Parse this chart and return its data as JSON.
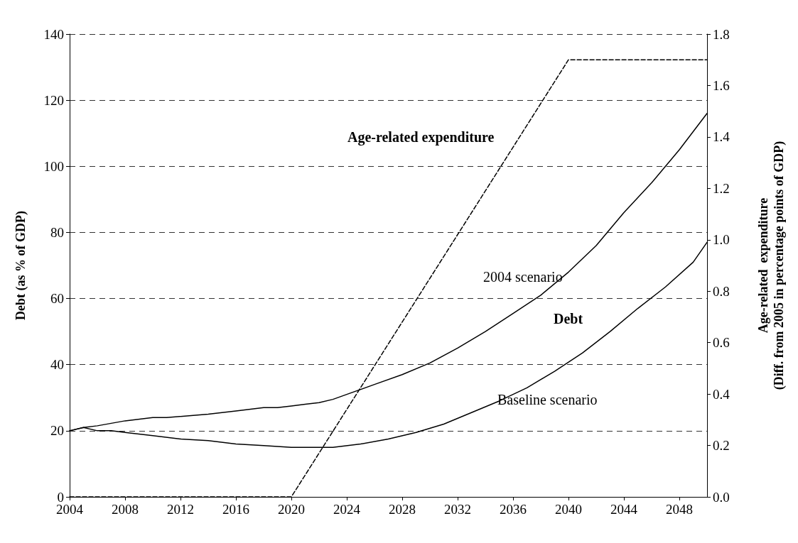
{
  "chart_data": {
    "type": "line",
    "ylabel": "Debt (as % of GDP)",
    "y2label": "Age-related  expenditure\n(Diff. from 2005 in percentage points of GDP)",
    "xlim": [
      2004,
      2050
    ],
    "xticks": [
      2004,
      2008,
      2012,
      2016,
      2020,
      2024,
      2028,
      2032,
      2036,
      2040,
      2044,
      2048
    ],
    "ylim": [
      0,
      140
    ],
    "yticks": [
      0,
      20,
      40,
      60,
      80,
      100,
      120,
      140
    ],
    "y2lim": [
      0,
      1.8
    ],
    "y2ticks": [
      {
        "value": 0,
        "label": "0.0"
      },
      0.2,
      0.4,
      0.6,
      0.8,
      {
        "value": 1,
        "label": "1.0"
      },
      1.2,
      1.4,
      1.6,
      1.8
    ],
    "grid": "y",
    "marker": "none",
    "series": [
      {
        "color": "#000000",
        "line_style": "solid",
        "x": [
          2004,
          2005,
          2006,
          2008,
          2010,
          2011,
          2014,
          2016,
          2018,
          2019,
          2020,
          2021,
          2022,
          2023,
          2024,
          2026,
          2028,
          2030,
          2032,
          2034,
          2036,
          2038,
          2040,
          2042,
          2044,
          2046,
          2048,
          2050
        ],
        "values": [
          20,
          21,
          21.5,
          23,
          24,
          24,
          25,
          26,
          27,
          27,
          27.5,
          28,
          28.5,
          29.5,
          31,
          34,
          37,
          40.5,
          45,
          50,
          55.5,
          61,
          68,
          76,
          86,
          95,
          105,
          116
        ]
      },
      {
        "color": "#000000",
        "line_style": "solid",
        "x": [
          2004,
          2005,
          2006,
          2007,
          2008,
          2010,
          2012,
          2014,
          2016,
          2018,
          2020,
          2022,
          2023,
          2025,
          2027,
          2029,
          2031,
          2033,
          2035,
          2037,
          2039,
          2041,
          2043,
          2045,
          2047,
          2049,
          2050
        ],
        "values": [
          20,
          21,
          20,
          20,
          19.5,
          18.5,
          17.5,
          17,
          16,
          15.5,
          15,
          15,
          15,
          16,
          17.5,
          19.5,
          22,
          25.5,
          29,
          33,
          38,
          43.5,
          50,
          57,
          63.5,
          71,
          77
        ]
      },
      {
        "color": "#000000",
        "line_style": "dashed",
        "axis": "y2",
        "x": [
          2004,
          2020,
          2040,
          2050
        ],
        "values": [
          0,
          0,
          1.7,
          1.7
        ]
      }
    ],
    "annotations": [
      "Age-related expenditure",
      "2004 scenario",
      "Debt",
      "Baseline scenario"
    ]
  }
}
